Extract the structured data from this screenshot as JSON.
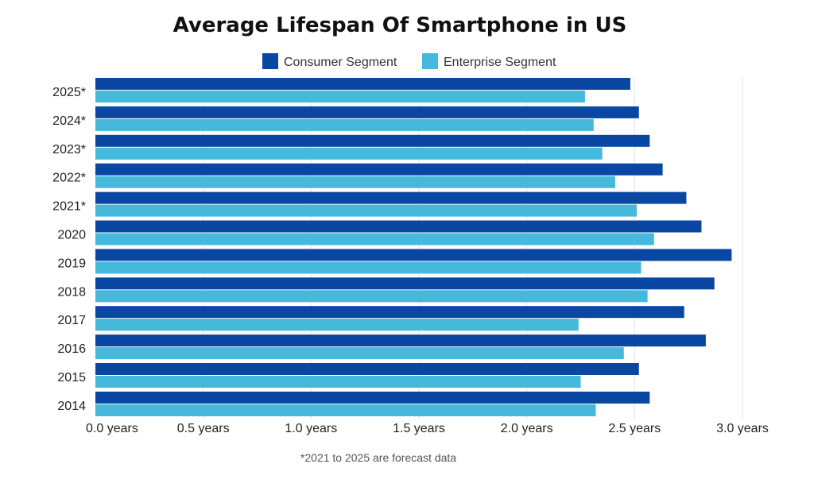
{
  "chart_data": {
    "type": "bar",
    "orientation": "horizontal",
    "title": "Average Lifespan Of Smartphone in US",
    "categories": [
      "2025*",
      "2024*",
      "2023*",
      "2022*",
      "2021*",
      "2020",
      "2019",
      "2018",
      "2017",
      "2016",
      "2015",
      "2014"
    ],
    "series": [
      {
        "name": "Consumer Segment",
        "color": "#0a47a3",
        "values": [
          2.48,
          2.52,
          2.57,
          2.63,
          2.74,
          2.81,
          2.95,
          2.87,
          2.73,
          2.83,
          2.52,
          2.57
        ]
      },
      {
        "name": "Enterprise Segment",
        "color": "#45b9db",
        "values": [
          2.27,
          2.31,
          2.35,
          2.41,
          2.51,
          2.59,
          2.53,
          2.56,
          2.24,
          2.45,
          2.25,
          2.32
        ]
      }
    ],
    "xlim": [
      0,
      3.0
    ],
    "x_ticks": [
      {
        "value": 0.0,
        "label": "0.0  years"
      },
      {
        "value": 0.5,
        "label": "0.5  years"
      },
      {
        "value": 1.0,
        "label": "1.0 years"
      },
      {
        "value": 1.5,
        "label": "1.5   years"
      },
      {
        "value": 2.0,
        "label": "2.0  years"
      },
      {
        "value": 2.5,
        "label": "2.5 years"
      },
      {
        "value": 3.0,
        "label": "3.0  years"
      }
    ],
    "grid": "vertical",
    "legend_position": "top-center",
    "footnote": "*2021 to 2025 are forecast data"
  }
}
